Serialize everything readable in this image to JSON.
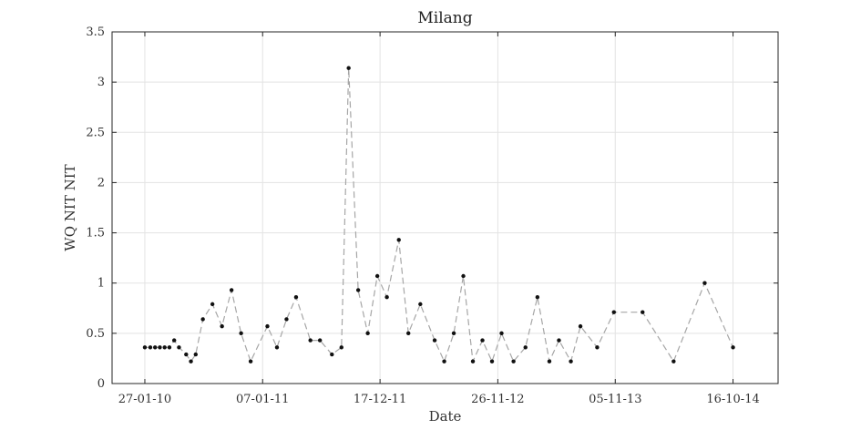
{
  "chart_data": {
    "type": "line",
    "title": "Milang",
    "xlabel": "Date",
    "ylabel": "WQ NIT NIT",
    "ylim": [
      0,
      3.5
    ],
    "y_ticks": [
      0,
      0.5,
      1,
      1.5,
      2,
      2.5,
      3,
      3.5
    ],
    "y_tick_labels": [
      "0",
      "0.5",
      "1",
      "1.5",
      "2",
      "2.5",
      "3",
      "3.5"
    ],
    "xlim": [
      "2009-10-23",
      "2015-02-25"
    ],
    "x_ticks": [
      "2010-01-27",
      "2011-01-07",
      "2011-12-17",
      "2012-11-26",
      "2013-11-05",
      "2014-10-16"
    ],
    "x_tick_labels": [
      "27-01-10",
      "07-01-11",
      "17-12-11",
      "26-11-12",
      "05-11-13",
      "16-10-14"
    ],
    "grid": true,
    "line_style": "dashed",
    "line_color": "#a6a6a6",
    "marker_color": "#111111",
    "series": [
      {
        "x": [
          "2010-01-27",
          "2010-02-12",
          "2010-02-26",
          "2010-03-12",
          "2010-03-26",
          "2010-04-09",
          "2010-04-23",
          "2010-05-07",
          "2010-05-28",
          "2010-06-11",
          "2010-06-25",
          "2010-07-16",
          "2010-08-13",
          "2010-09-10",
          "2010-10-08",
          "2010-11-05",
          "2010-12-03",
          "2011-01-21",
          "2011-02-18",
          "2011-03-18",
          "2011-04-15",
          "2011-05-27",
          "2011-06-24",
          "2011-07-29",
          "2011-08-26",
          "2011-09-16",
          "2011-10-14",
          "2011-11-11",
          "2011-12-09",
          "2012-01-06",
          "2012-02-10",
          "2012-03-09",
          "2012-04-13",
          "2012-05-25",
          "2012-06-22",
          "2012-07-20",
          "2012-08-17",
          "2012-09-14",
          "2012-10-12",
          "2012-11-09",
          "2012-12-07",
          "2013-01-11",
          "2013-02-15",
          "2013-03-22",
          "2013-04-26",
          "2013-05-24",
          "2013-06-28",
          "2013-07-26",
          "2013-09-13",
          "2013-11-01",
          "2014-01-24",
          "2014-04-25",
          "2014-07-25",
          "2014-10-16"
        ],
        "y": [
          0.36,
          0.36,
          0.36,
          0.36,
          0.36,
          0.36,
          0.43,
          0.36,
          0.29,
          0.22,
          0.29,
          0.64,
          0.79,
          0.57,
          0.93,
          0.5,
          0.22,
          0.57,
          0.36,
          0.64,
          0.86,
          0.43,
          0.43,
          0.29,
          0.36,
          3.14,
          0.93,
          0.5,
          1.07,
          0.86,
          1.43,
          0.5,
          0.79,
          0.43,
          0.22,
          0.5,
          1.07,
          0.22,
          0.43,
          0.22,
          0.5,
          0.22,
          0.36,
          0.86,
          0.22,
          0.43,
          0.22,
          0.57,
          0.36,
          0.71,
          0.71,
          0.22,
          1.0,
          0.36
        ]
      }
    ]
  }
}
